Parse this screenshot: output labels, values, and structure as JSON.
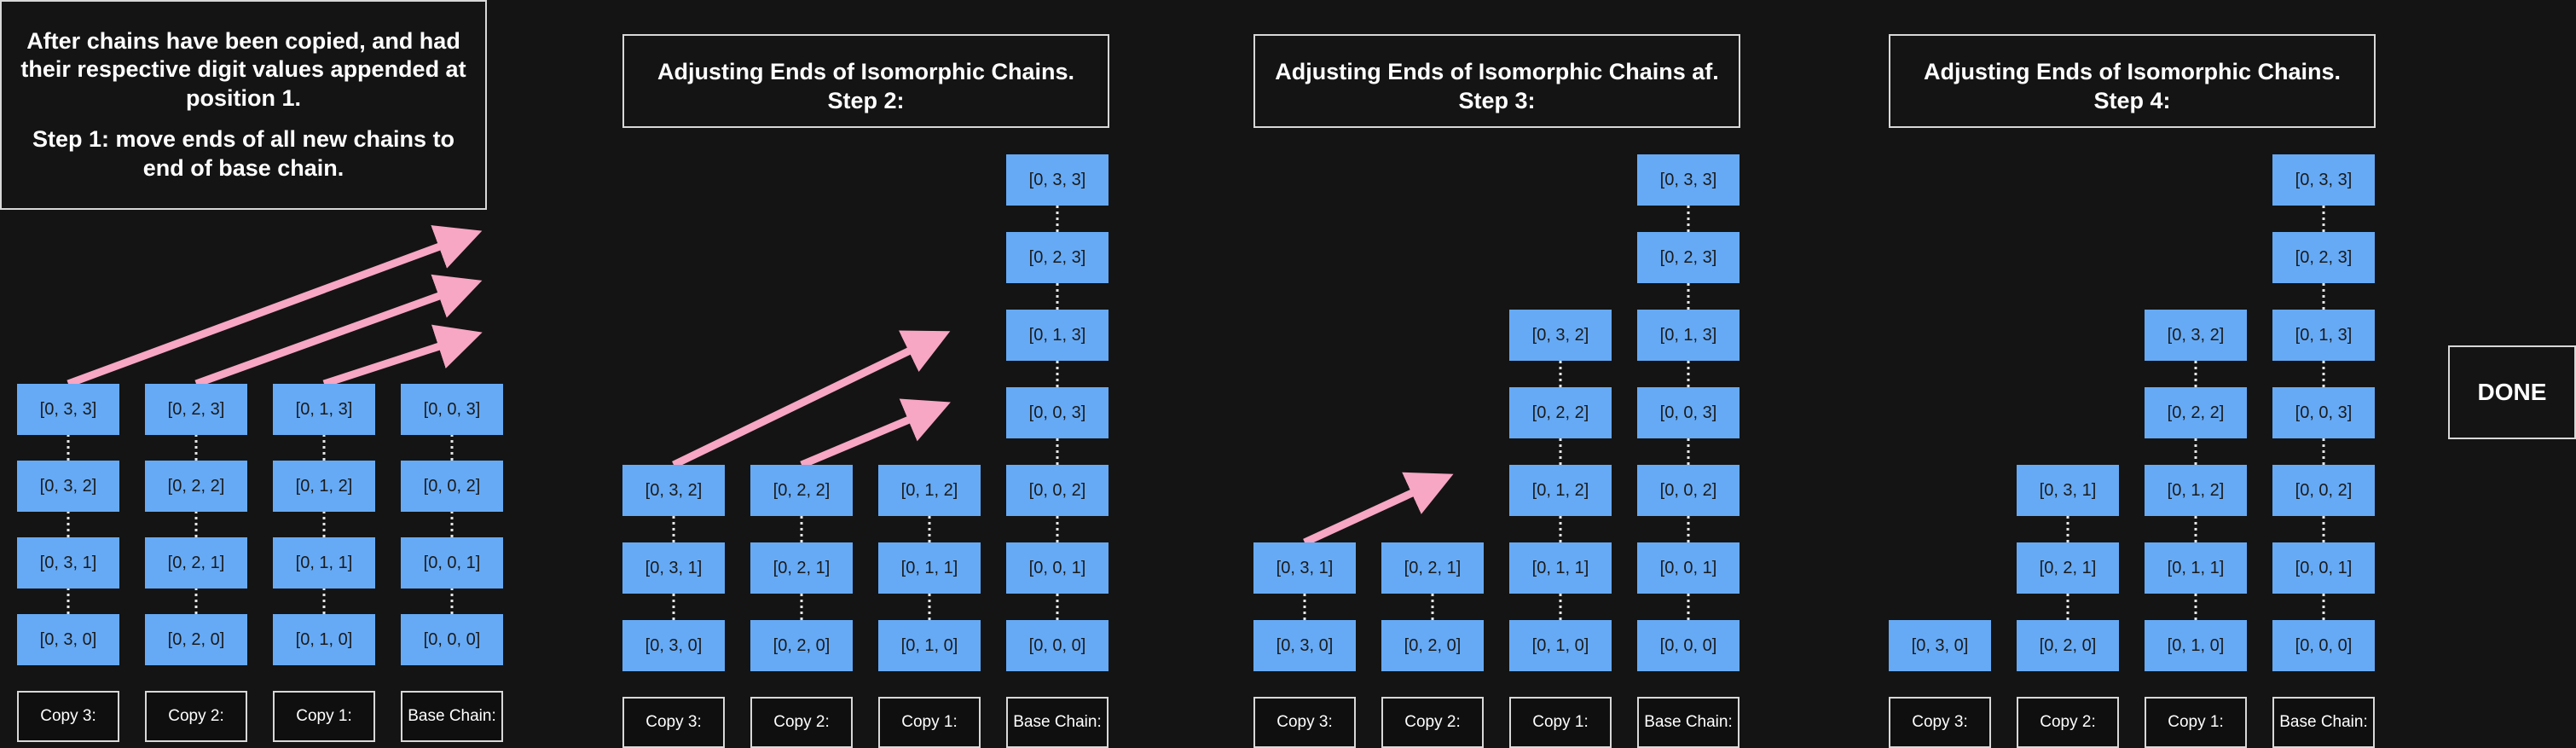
{
  "panels": [
    {
      "title_lines": [
        "After chains have been copied, and had",
        "their respective digit values appended at",
        "position 1.",
        "Step 1: move ends of all new chains to",
        "end of base chain."
      ],
      "columns": [
        {
          "label": "Copy 3:",
          "nodes": [
            "[0, 3, 0]",
            "[0, 3, 1]",
            "[0, 3, 2]",
            "[0, 3, 3]"
          ]
        },
        {
          "label": "Copy 2:",
          "nodes": [
            "[0, 2, 0]",
            "[0, 2, 1]",
            "[0, 2, 2]",
            "[0, 2, 3]"
          ]
        },
        {
          "label": "Copy 1:",
          "nodes": [
            "[0, 1, 0]",
            "[0, 1, 1]",
            "[0, 1, 2]",
            "[0, 1, 3]"
          ]
        },
        {
          "label": "Base Chain:",
          "nodes": [
            "[0, 0, 0]",
            "[0, 0, 1]",
            "[0, 0, 2]",
            "[0, 0, 3]"
          ]
        }
      ]
    },
    {
      "title_lines": [
        "Adjusting Ends of Isomorphic Chains.",
        "Step 2:"
      ],
      "columns": [
        {
          "label": "Copy 3:",
          "nodes": [
            "[0, 3, 0]",
            "[0, 3, 1]",
            "[0, 3, 2]"
          ]
        },
        {
          "label": "Copy 2:",
          "nodes": [
            "[0, 2, 0]",
            "[0, 2, 1]",
            "[0, 2, 2]"
          ]
        },
        {
          "label": "Copy 1:",
          "nodes": [
            "[0, 1, 0]",
            "[0, 1, 1]",
            "[0, 1, 2]"
          ]
        },
        {
          "label": "Base Chain:",
          "nodes": [
            "[0, 0, 0]",
            "[0, 0, 1]",
            "[0, 0, 2]",
            "[0, 0, 3]",
            "[0, 1, 3]",
            "[0, 2, 3]",
            "[0, 3, 3]"
          ]
        }
      ]
    },
    {
      "title_lines": [
        "Adjusting Ends of Isomorphic Chains af.",
        "Step 3:"
      ],
      "columns": [
        {
          "label": "Copy 3:",
          "nodes": [
            "[0, 3, 0]",
            "[0, 3, 1]"
          ]
        },
        {
          "label": "Copy 2:",
          "nodes": [
            "[0, 2, 0]",
            "[0, 2, 1]"
          ]
        },
        {
          "label": "Copy 1:",
          "nodes": [
            "[0, 1, 0]",
            "[0, 1, 1]",
            "[0, 1, 2]",
            "[0, 2, 2]",
            "[0, 3, 2]"
          ]
        },
        {
          "label": "Base Chain:",
          "nodes": [
            "[0, 0, 0]",
            "[0, 0, 1]",
            "[0, 0, 2]",
            "[0, 0, 3]",
            "[0, 1, 3]",
            "[0, 2, 3]",
            "[0, 3, 3]"
          ]
        }
      ]
    },
    {
      "title_lines": [
        "Adjusting Ends of Isomorphic Chains.",
        "Step 4:"
      ],
      "columns": [
        {
          "label": "Copy 3:",
          "nodes": [
            "[0, 3, 0]"
          ]
        },
        {
          "label": "Copy 2:",
          "nodes": [
            "[0, 2, 0]",
            "[0, 2, 1]",
            "[0, 3, 1]"
          ]
        },
        {
          "label": "Copy 1:",
          "nodes": [
            "[0, 1, 0]",
            "[0, 1, 1]",
            "[0, 1, 2]",
            "[0, 2, 2]",
            "[0, 3, 2]"
          ]
        },
        {
          "label": "Base Chain:",
          "nodes": [
            "[0, 0, 0]",
            "[0, 0, 1]",
            "[0, 0, 2]",
            "[0, 0, 3]",
            "[0, 1, 3]",
            "[0, 2, 3]",
            "[0, 3, 3]"
          ]
        }
      ]
    }
  ],
  "done_label": "DONE",
  "colors": {
    "background": "#141414",
    "node_fill": "#66aaf5",
    "arrow": "#f7a6c4",
    "connector": "#e6e6e6",
    "border": "#d8d8d8"
  }
}
